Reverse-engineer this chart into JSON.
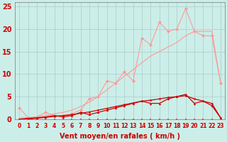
{
  "x": [
    0,
    1,
    2,
    3,
    4,
    5,
    6,
    7,
    8,
    9,
    10,
    11,
    12,
    13,
    14,
    15,
    16,
    17,
    18,
    19,
    20,
    21,
    22,
    23
  ],
  "line_zigzag": [
    2.5,
    0.3,
    0.5,
    1.5,
    0.8,
    0.8,
    1.2,
    2.0,
    4.5,
    5.0,
    8.5,
    8.0,
    10.5,
    8.5,
    18.0,
    16.5,
    21.5,
    19.5,
    20.0,
    24.5,
    19.5,
    18.5,
    18.5,
    8.0
  ],
  "line_smooth": [
    0.3,
    0.3,
    0.5,
    0.8,
    1.2,
    1.5,
    2.0,
    2.8,
    3.8,
    5.0,
    6.5,
    8.0,
    9.5,
    11.0,
    12.5,
    14.0,
    15.0,
    16.0,
    17.0,
    18.5,
    19.5,
    19.5,
    19.5,
    8.0
  ],
  "line_med_zigzag": [
    0.0,
    0.2,
    0.3,
    0.5,
    0.8,
    0.5,
    0.8,
    1.5,
    1.0,
    1.5,
    2.0,
    2.5,
    3.0,
    3.5,
    4.0,
    3.5,
    3.5,
    4.5,
    5.0,
    5.5,
    3.5,
    4.0,
    3.0,
    0.3
  ],
  "line_med_smooth": [
    0.0,
    0.0,
    0.2,
    0.4,
    0.6,
    0.8,
    1.0,
    1.3,
    1.6,
    2.0,
    2.4,
    2.8,
    3.2,
    3.6,
    4.0,
    4.2,
    4.5,
    4.8,
    5.0,
    5.2,
    4.5,
    4.0,
    3.5,
    0.3
  ],
  "line_bottom": [
    0.0,
    0.0,
    0.0,
    0.0,
    0.0,
    0.0,
    0.0,
    0.0,
    0.0,
    0.0,
    0.0,
    0.0,
    0.0,
    0.0,
    0.0,
    0.0,
    0.0,
    0.0,
    0.0,
    0.0,
    0.0,
    0.0,
    0.0,
    0.0
  ],
  "bg_color": "#cceee8",
  "grid_color": "#aacccc",
  "color_light": "#ff9999",
  "color_dark": "#cc0000",
  "xlabel": "Vent moyen/en rafales ( km/h )",
  "ylim": [
    0,
    26
  ],
  "xlim": [
    -0.5,
    23.5
  ],
  "yticks": [
    0,
    5,
    10,
    15,
    20,
    25
  ],
  "xticks": [
    0,
    1,
    2,
    3,
    4,
    5,
    6,
    7,
    8,
    9,
    10,
    11,
    12,
    13,
    14,
    15,
    16,
    17,
    18,
    19,
    20,
    21,
    22,
    23
  ],
  "tick_fontsize": 5.5,
  "xlabel_fontsize": 7
}
